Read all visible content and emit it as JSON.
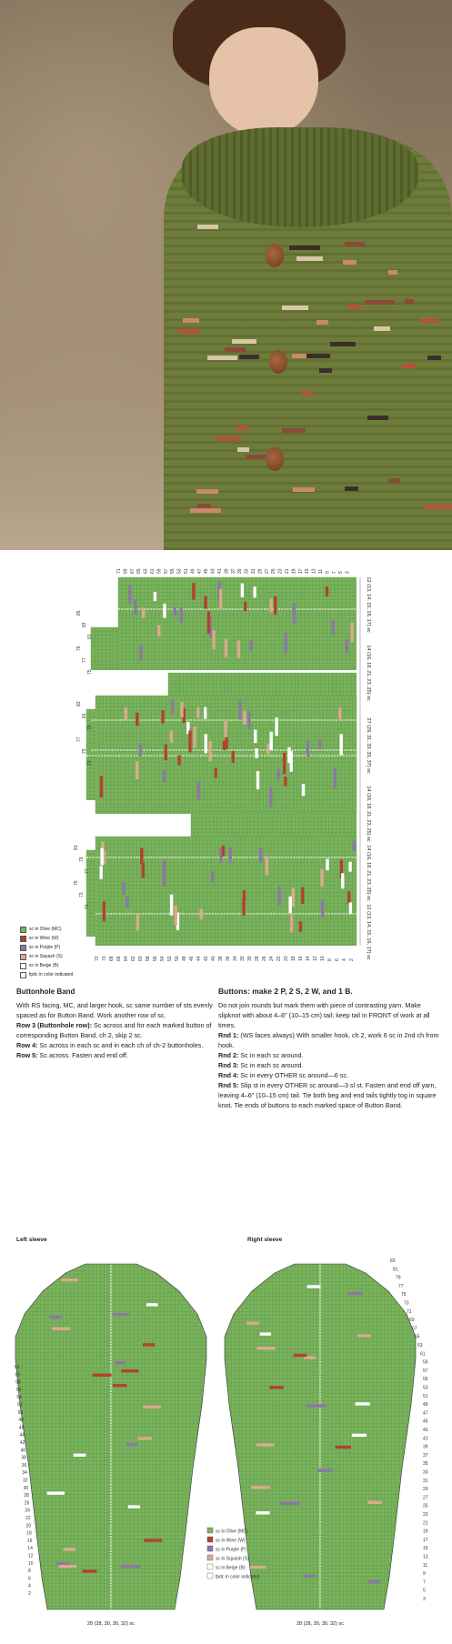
{
  "colors": {
    "olive": "#79b35c",
    "grid_line": "#5e9446",
    "wine": "#b0432c",
    "purple": "#8c78a6",
    "squash": "#d9aa8c",
    "beige": "#ffffff",
    "photo_jacket": "#6e7c3a"
  },
  "photo": {
    "alt": "Woman wearing olive green crocheted jacket with collar and colored stripe accents",
    "stripe_colors": [
      "#b5523a",
      "#3b2e2a",
      "#c98a66",
      "#d6c7a6",
      "#8a4a3a"
    ]
  },
  "body_chart": {
    "row_labels_top": [
      "71",
      "69",
      "67",
      "65",
      "63",
      "61",
      "59",
      "57",
      "55",
      "53",
      "51",
      "49",
      "47",
      "45",
      "43",
      "41",
      "39",
      "37",
      "35",
      "33",
      "31",
      "29",
      "27",
      "25",
      "23",
      "21",
      "19",
      "17",
      "15",
      "13",
      "11",
      "9",
      "7",
      "5",
      "3"
    ],
    "panel1_left_numbers": [
      "85",
      "83",
      "81",
      "79",
      "77",
      "75"
    ],
    "panel2_left_numbers": [
      "83",
      "81",
      "79",
      "77",
      "75",
      "73"
    ],
    "panel3_left_numbers": [
      "81",
      "79",
      "77",
      "75",
      "73",
      "71"
    ],
    "row_labels_bottom": [
      "72",
      "70",
      "68",
      "66",
      "64",
      "62",
      "60",
      "58",
      "56",
      "54",
      "52",
      "50",
      "48",
      "46",
      "44",
      "42",
      "40",
      "38",
      "36",
      "34",
      "32",
      "30",
      "28",
      "26",
      "24",
      "22",
      "20",
      "18",
      "16",
      "14",
      "12",
      "10",
      "8",
      "6",
      "4",
      "2"
    ],
    "side_notes": [
      "12 (13, 14, 15, 16, 17) sc",
      "14 (16, 18, 21, 23, 25) sc",
      "27 (29, 31, 33, 35, 37) sc",
      "14 (16, 18, 21, 23, 25) sc",
      "14 (16, 18, 21, 23, 25) sc",
      "12 (13, 14, 15, 16, 17) sc"
    ]
  },
  "legend": [
    {
      "label": "sc in Olive (MC)",
      "color": "#79b35c"
    },
    {
      "label": "sc in Wine (W)",
      "color": "#b0432c"
    },
    {
      "label": "sc in Purple (P)",
      "color": "#8c78a6"
    },
    {
      "label": "sc in Squash (S)",
      "color": "#d9aa8c"
    },
    {
      "label": "sc in Beige (B)",
      "color": "#ffffff"
    },
    {
      "label": "fpdc in color indicated",
      "color": "#ffffff"
    }
  ],
  "text": {
    "buttonhole_heading": "Buttonhole Band",
    "buttonhole_intro": "With RS facing, MC, and larger hook, sc same number of sts evenly spaced as for Button Band. Work another row of sc.",
    "row3_label": "Row 3 (Buttonhole row):",
    "row3_text": " Sc across and for each marked button of corresponding Button Band, ch 2, skip 2 sc.",
    "row4_label": "Row 4:",
    "row4_text": " Sc across in each sc and in each ch of ch-2 buttonholes.",
    "row5_label": "Row 5:",
    "row5_text": " Sc across. Fasten and end off.",
    "buttons_heading": "Buttons: make 2 P, 2 S, 2 W, and 1 B.",
    "buttons_intro": "Do not join rounds but mark them with piece of contrasting yarn. Make slipknot with about 4–6\" (10–15 cm) tail; keep tail in FRONT of work at all times.",
    "rnd1_label": "Rnd 1:",
    "rnd1_text": " (WS faces always) With smaller hook, ch 2, work 6 sc in 2nd ch from hook.",
    "rnd2_label": "Rnd 2:",
    "rnd2_text": " Sc in each sc around.",
    "rnd3_label": "Rnd 3:",
    "rnd3_text": " Sc in each sc around.",
    "rnd4_label": "Rnd 4:",
    "rnd4_text": " Sc in every OTHER sc around—6 sc.",
    "rnd5_label": "Rnd 5:",
    "rnd5_text": " Slip st in every OTHER sc around—3 sl st. Fasten and end off yarn, leaving 4–6\" (10–15 cm) tail. Tie both beg and end tails tightly tog in square knot. Tie ends of buttons to each marked space of Button Band."
  },
  "sleeves": {
    "left_label": "Left sleeve",
    "right_label": "Right sleeve",
    "right_row_numbers": [
      "83",
      "81",
      "79",
      "77",
      "75",
      "73",
      "71",
      "69",
      "67",
      "65",
      "63",
      "61",
      "59",
      "57",
      "55",
      "53",
      "51",
      "49",
      "47",
      "45",
      "43",
      "41",
      "39",
      "37",
      "35",
      "33",
      "31",
      "29",
      "27",
      "25",
      "23",
      "21",
      "19",
      "17",
      "15",
      "13",
      "11",
      "9",
      "7",
      "5",
      "3"
    ],
    "left_row_numbers": [
      "62",
      "60",
      "58",
      "56",
      "54",
      "52",
      "50",
      "48",
      "46",
      "44",
      "42",
      "40",
      "38",
      "36",
      "34",
      "32",
      "30",
      "28",
      "26",
      "24",
      "22",
      "20",
      "18",
      "16",
      "14",
      "12",
      "10",
      "8",
      "6",
      "4",
      "2"
    ],
    "left_bottom_note": "28 (28, 30, 30, 32) sc",
    "right_bottom_note": "28 (28, 30, 30, 32) sc"
  }
}
